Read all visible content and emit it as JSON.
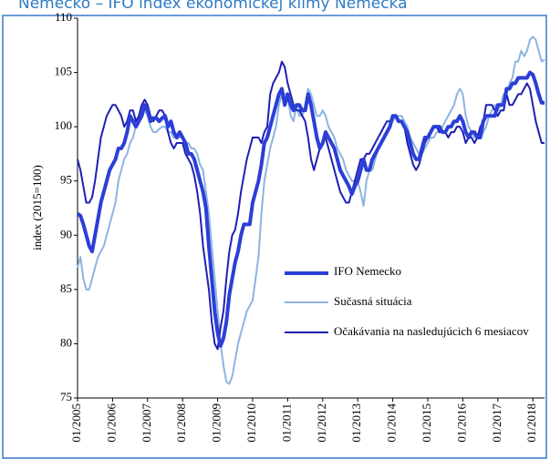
{
  "chart_data": {
    "type": "line",
    "title": "Nemecko – IFO index ekonomickej klímy Nemecka",
    "y_label": "index (2015=100)",
    "categories": [
      "01/2005",
      null,
      null,
      null,
      null,
      null,
      null,
      null,
      null,
      null,
      null,
      null,
      "01/2006",
      null,
      null,
      null,
      null,
      null,
      null,
      null,
      null,
      null,
      null,
      null,
      "01/2007",
      null,
      null,
      null,
      null,
      null,
      null,
      null,
      null,
      null,
      null,
      null,
      "01/2008",
      null,
      null,
      null,
      null,
      null,
      null,
      null,
      null,
      null,
      null,
      null,
      "01/2009",
      null,
      null,
      null,
      null,
      null,
      null,
      null,
      null,
      null,
      null,
      null,
      "01/2010",
      null,
      null,
      null,
      null,
      null,
      null,
      null,
      null,
      null,
      null,
      null,
      "01/2011",
      null,
      null,
      null,
      null,
      null,
      null,
      null,
      null,
      null,
      null,
      null,
      "01/2012",
      null,
      null,
      null,
      null,
      null,
      null,
      null,
      null,
      null,
      null,
      null,
      "01/2013",
      null,
      null,
      null,
      null,
      null,
      null,
      null,
      null,
      null,
      null,
      null,
      "01/2014",
      null,
      null,
      null,
      null,
      null,
      null,
      null,
      null,
      null,
      null,
      null,
      "01/2015",
      null,
      null,
      null,
      null,
      null,
      null,
      null,
      null,
      null,
      null,
      null,
      "01/2016",
      null,
      null,
      null,
      null,
      null,
      null,
      null,
      null,
      null,
      null,
      null,
      "01/2017",
      null,
      null,
      null,
      null,
      null,
      null,
      null,
      null,
      null,
      null,
      null,
      "01/2018",
      null,
      null,
      null,
      null
    ],
    "series": [
      {
        "name": "IFO Nemecko",
        "color": "#2b3fd6",
        "width": 4,
        "values": [
          92,
          91.8,
          91,
          90,
          89,
          88.5,
          90,
          91.5,
          93,
          94,
          95,
          96,
          96.5,
          97,
          98,
          98,
          98.5,
          99.5,
          101,
          100.5,
          100,
          100.5,
          101,
          102,
          101.5,
          100.5,
          100.8,
          100.8,
          100.5,
          100.8,
          101,
          100,
          100.5,
          99.5,
          99,
          99.5,
          99,
          98.5,
          97.5,
          97.5,
          97,
          96,
          95,
          94,
          92.5,
          89,
          86,
          83,
          81,
          79.8,
          80.5,
          82,
          84.5,
          86,
          87.5,
          88.5,
          90,
          91,
          91,
          91,
          93,
          94,
          95,
          96.5,
          98.5,
          99,
          100,
          101,
          102,
          103,
          103.5,
          102,
          103,
          102,
          101.5,
          102,
          102,
          101.5,
          101.5,
          103,
          102,
          100.5,
          99,
          98,
          98.5,
          99.5,
          99,
          98.5,
          98,
          97,
          96,
          95.5,
          95,
          94.5,
          93.8,
          94.5,
          95,
          96,
          97,
          96,
          96,
          97,
          97.5,
          98,
          98.5,
          99,
          99.5,
          100,
          101,
          101,
          100.5,
          100.5,
          100,
          99.5,
          98.5,
          97.5,
          97,
          97,
          98,
          99,
          99,
          99.5,
          100,
          100,
          100,
          99.5,
          99.5,
          100,
          100,
          100.5,
          100.5,
          101,
          100.5,
          99.5,
          99,
          99.5,
          99.5,
          99,
          99,
          100.5,
          101,
          101,
          101,
          101,
          102,
          102,
          102,
          103.5,
          103.5,
          104,
          104,
          104.5,
          104.5,
          104.5,
          104.5,
          105,
          104.8,
          104,
          103,
          102.2,
          102.2
        ]
      },
      {
        "name": "Sučasná situácia",
        "color": "#8db4e2",
        "width": 2,
        "values": [
          87,
          88,
          86,
          85,
          85,
          86,
          87,
          88,
          88.5,
          89,
          90,
          91,
          92,
          93,
          95,
          96,
          97,
          97.5,
          98.5,
          99,
          100,
          100.5,
          101,
          101.5,
          101,
          100,
          99.5,
          99.5,
          99.8,
          100,
          100,
          99.5,
          99.5,
          99,
          99,
          99,
          99,
          98.5,
          98.5,
          98,
          98,
          97.5,
          96.5,
          96,
          94,
          92,
          89,
          86,
          83,
          80,
          78,
          76.5,
          76.3,
          77,
          78.5,
          80,
          81,
          82,
          83,
          83.5,
          84,
          86,
          88,
          92,
          95,
          96.5,
          98,
          99,
          100,
          102,
          103,
          103,
          103,
          101,
          100.5,
          102,
          101,
          101,
          102,
          103.5,
          103,
          102,
          101,
          101,
          101.5,
          101,
          100,
          99.5,
          99,
          98,
          97.5,
          97,
          96,
          95.5,
          95,
          95,
          95,
          94,
          92.7,
          95,
          96,
          96,
          97,
          98,
          98.5,
          99,
          99.5,
          100,
          100.5,
          101,
          101,
          101,
          100.5,
          100,
          99,
          98.5,
          98,
          97.5,
          97.5,
          98,
          98.5,
          99,
          99,
          99.5,
          99.5,
          100,
          100.5,
          101,
          101.5,
          102,
          103,
          103.5,
          103,
          101,
          100,
          99.5,
          99,
          99,
          99,
          99.5,
          100,
          101,
          101.5,
          102,
          101.5,
          102,
          103,
          103,
          104,
          104.5,
          106,
          106,
          107,
          106.5,
          107,
          108,
          108.3,
          108,
          107,
          106,
          106.2
        ]
      },
      {
        "name": "Očakávania na nasledujúcich 6 mesiacov",
        "color": "#1f1fb4",
        "width": 2,
        "values": [
          97,
          96,
          94.5,
          93,
          93,
          93.5,
          95,
          97,
          99,
          100,
          101,
          101.5,
          102,
          102,
          101.5,
          101,
          100,
          100.5,
          101.5,
          101.5,
          100.5,
          101,
          102,
          102.5,
          102,
          101,
          100.5,
          101,
          101.5,
          101.5,
          101,
          99.5,
          98.5,
          98,
          98.5,
          98.5,
          98.5,
          97.5,
          97,
          96.5,
          95.5,
          94,
          92,
          89,
          87,
          85,
          82,
          80,
          79.5,
          81.5,
          83,
          86,
          88.5,
          90,
          90.5,
          92,
          94,
          95.5,
          97,
          98,
          99,
          99,
          99,
          98.5,
          99.5,
          100,
          103,
          104,
          104.5,
          105,
          106,
          105.5,
          104,
          103,
          102,
          101.5,
          101.5,
          101,
          100.5,
          99,
          97,
          96,
          97,
          98,
          98.5,
          99,
          98,
          97,
          96,
          95,
          94,
          93.5,
          93,
          93,
          94,
          95,
          96,
          97,
          97,
          97.5,
          97.5,
          98,
          98.5,
          99,
          99.5,
          100,
          100.5,
          100.5,
          101,
          101,
          100.5,
          100.5,
          100,
          98.5,
          97.5,
          96.5,
          96,
          96.5,
          97.5,
          98.5,
          99,
          99.5,
          100,
          100,
          99.5,
          99.5,
          99.5,
          99,
          99.5,
          99.5,
          100,
          100,
          99.5,
          98.5,
          99,
          99,
          98.5,
          99,
          100,
          100.5,
          102,
          102,
          102,
          101.5,
          101,
          101.5,
          101.5,
          103,
          102,
          102,
          102.5,
          103,
          103,
          103.5,
          104,
          103.5,
          102,
          100.5,
          99.5,
          98.5,
          98.5
        ]
      }
    ],
    "draw_order": [
      1,
      2,
      0
    ],
    "ylim": [
      75,
      110
    ],
    "yticks": [
      75,
      80,
      85,
      90,
      95,
      100,
      105,
      110
    ]
  }
}
